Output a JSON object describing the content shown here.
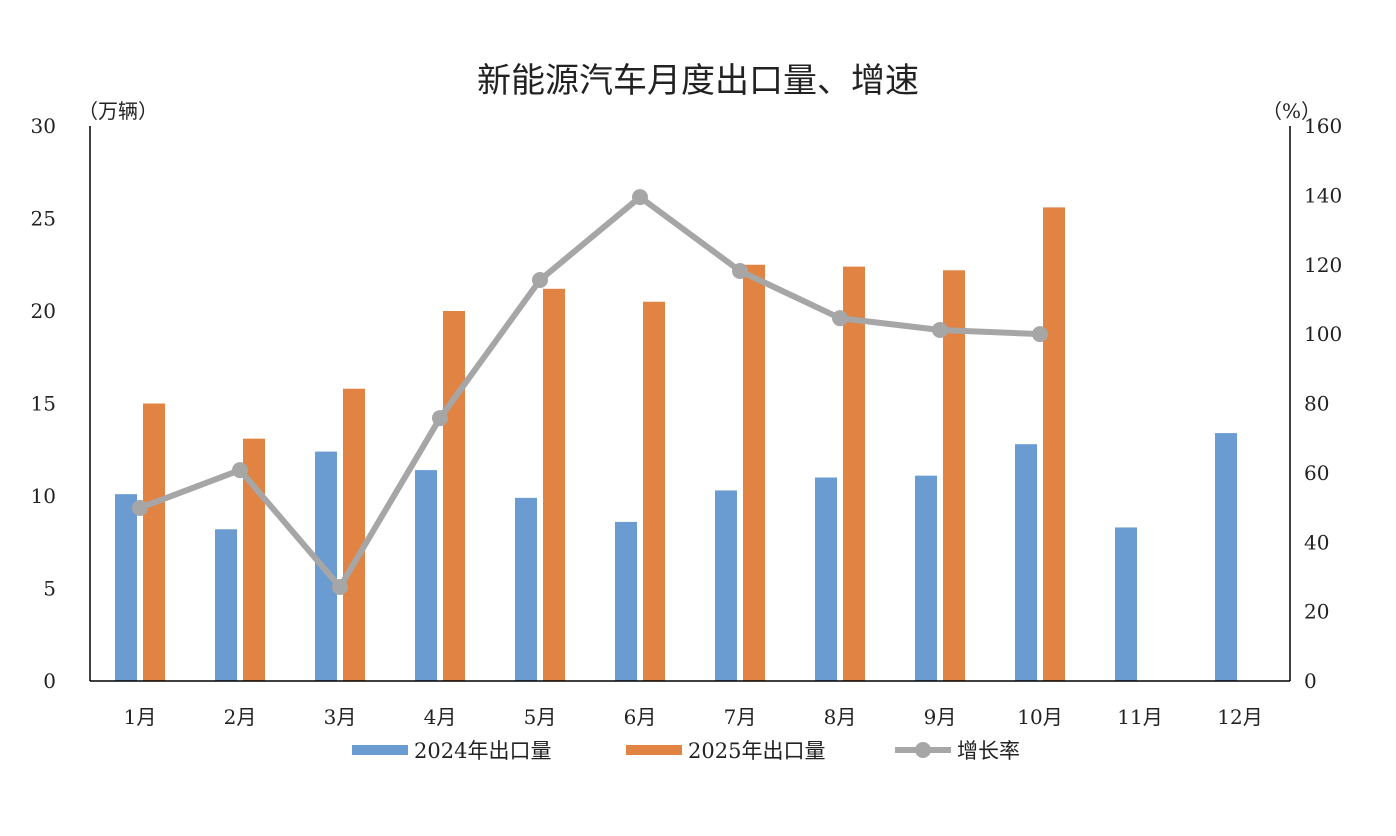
{
  "chart_data": {
    "type": "bar",
    "title": "新能源汽车月度出口量、增速",
    "ylabel_left": "（万辆）",
    "ylabel_right": "（%）",
    "categories": [
      "1月",
      "2月",
      "3月",
      "4月",
      "5月",
      "6月",
      "7月",
      "8月",
      "9月",
      "10月",
      "11月",
      "12月"
    ],
    "ylim_left": [
      0,
      30
    ],
    "yticks_left": [
      0,
      5,
      10,
      15,
      20,
      25,
      30
    ],
    "ylim_right": [
      0,
      160
    ],
    "yticks_right": [
      0,
      20,
      40,
      60,
      80,
      100,
      120,
      140,
      160
    ],
    "grid": false,
    "legend_position": "bottom",
    "series": [
      {
        "name": "2024年出口量",
        "type": "bar",
        "axis": "left",
        "color": "#6a9bd1",
        "values": [
          10.1,
          8.2,
          12.4,
          11.4,
          9.9,
          8.6,
          10.3,
          11.0,
          11.1,
          12.8,
          8.3,
          13.4
        ]
      },
      {
        "name": "2025年出口量",
        "type": "bar",
        "axis": "left",
        "color": "#e08343",
        "values": [
          15.0,
          13.1,
          15.8,
          20.0,
          21.2,
          20.5,
          22.5,
          22.4,
          22.2,
          25.6,
          null,
          null
        ]
      },
      {
        "name": "增长率",
        "type": "line",
        "axis": "right",
        "color": "#a6a6a6",
        "values": [
          49.9,
          60.8,
          27.1,
          75.8,
          115.6,
          139.5,
          118.2,
          104.6,
          101.2,
          100.0,
          null,
          null
        ]
      }
    ]
  }
}
